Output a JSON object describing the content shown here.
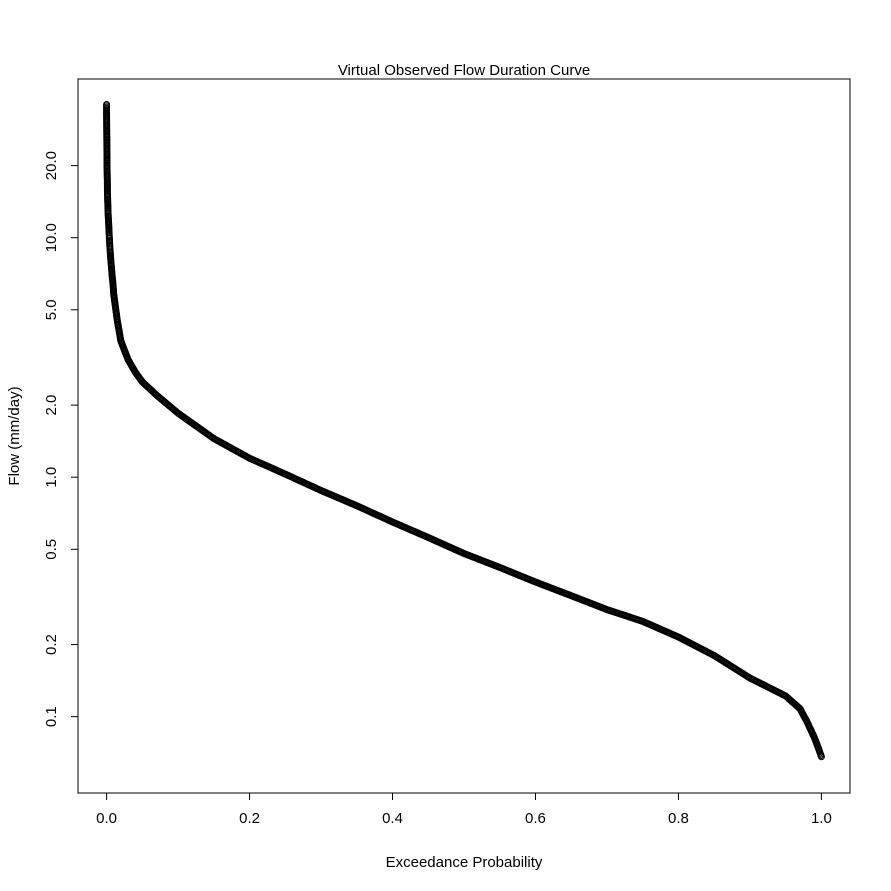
{
  "chart_data": {
    "type": "scatter",
    "title": "Virtual Observed Flow Duration Curve",
    "xlabel": "Exceedance Probability",
    "ylabel": "Flow (mm/day)",
    "xlim": [
      -0.04,
      1.04
    ],
    "ylim": [
      0.048,
      46
    ],
    "y_scale": "log",
    "grid": false,
    "legend": "none",
    "marker": "open-circle",
    "x_ticks": [
      0.0,
      0.2,
      0.4,
      0.6,
      0.8,
      1.0
    ],
    "x_tick_labels": [
      "0.0",
      "0.2",
      "0.4",
      "0.6",
      "0.8",
      "1.0"
    ],
    "y_ticks": [
      0.1,
      0.2,
      0.5,
      1.0,
      2.0,
      5.0,
      10.0,
      20.0
    ],
    "y_tick_labels": [
      "0.1",
      "0.2",
      "0.5",
      "1.0",
      "2.0",
      "5.0",
      "10.0",
      "20.0"
    ],
    "series": [
      {
        "color": "#000000",
        "points": [
          [
            0.0,
            36.0
          ],
          [
            0.0,
            33.0
          ],
          [
            0.0005,
            22.0
          ],
          [
            0.0006,
            19.8
          ],
          [
            0.0007,
            19.2
          ],
          [
            0.001,
            17.5
          ],
          [
            0.0012,
            15.5
          ],
          [
            0.0015,
            14.5
          ],
          [
            0.0018,
            13.5
          ],
          [
            0.002,
            12.8
          ],
          [
            0.0025,
            12.0
          ],
          [
            0.003,
            11.3
          ],
          [
            0.0035,
            10.5
          ],
          [
            0.004,
            9.8
          ],
          [
            0.0045,
            9.2
          ],
          [
            0.005,
            8.8
          ],
          [
            0.006,
            8.0
          ],
          [
            0.007,
            7.4
          ],
          [
            0.008,
            6.8
          ],
          [
            0.009,
            6.4
          ],
          [
            0.01,
            5.8
          ],
          [
            0.015,
            4.5
          ],
          [
            0.02,
            3.7
          ],
          [
            0.03,
            3.1
          ],
          [
            0.04,
            2.75
          ],
          [
            0.05,
            2.5
          ],
          [
            0.07,
            2.2
          ],
          [
            0.1,
            1.85
          ],
          [
            0.15,
            1.45
          ],
          [
            0.2,
            1.2
          ],
          [
            0.25,
            1.03
          ],
          [
            0.3,
            0.88
          ],
          [
            0.35,
            0.76
          ],
          [
            0.4,
            0.65
          ],
          [
            0.45,
            0.56
          ],
          [
            0.5,
            0.48
          ],
          [
            0.55,
            0.42
          ],
          [
            0.6,
            0.365
          ],
          [
            0.65,
            0.32
          ],
          [
            0.7,
            0.28
          ],
          [
            0.75,
            0.25
          ],
          [
            0.8,
            0.215
          ],
          [
            0.85,
            0.18
          ],
          [
            0.9,
            0.145
          ],
          [
            0.95,
            0.122
          ],
          [
            0.97,
            0.108
          ],
          [
            0.98,
            0.095
          ],
          [
            0.99,
            0.082
          ],
          [
            0.995,
            0.075
          ],
          [
            1.0,
            0.068
          ]
        ]
      }
    ]
  }
}
